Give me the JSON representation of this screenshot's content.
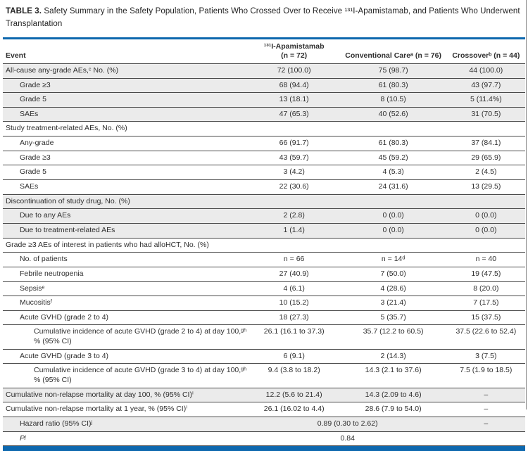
{
  "title": {
    "bold": "TABLE 3.",
    "text": " Safety Summary in the Safety Population, Patients Who Crossed Over to Receive ¹³¹I-Apamistamab, and Patients Who Underwent Transplantation"
  },
  "colors": {
    "accent_blue": "#0e68ae",
    "row_shade_gray": "#ebebeb",
    "rule_dark": "#4a4a4a",
    "text": "#2e2e2e"
  },
  "table": {
    "header": {
      "event": "Event",
      "col2_line1": "¹³¹I-Apamistamab",
      "col2_line2": "(n = 72)",
      "col3": "Conventional Careᵃ (n = 76)",
      "col4": "Crossoverᵇ (n = 44)"
    },
    "rows": [
      {
        "label": "All-cause any-grade AEs,ᶜ No. (%)",
        "indent": 0,
        "shade": true,
        "values": [
          "72 (100.0)",
          "75 (98.7)",
          "44 (100.0)"
        ]
      },
      {
        "label": "Grade ≥3",
        "indent": 1,
        "shade": true,
        "values": [
          "68 (94.4)",
          "61 (80.3)",
          "43 (97.7)"
        ]
      },
      {
        "label": "Grade 5",
        "indent": 1,
        "shade": true,
        "values": [
          "13 (18.1)",
          "8 (10.5)",
          "5 (11.4%)"
        ]
      },
      {
        "label": "SAEs",
        "indent": 1,
        "shade": true,
        "values": [
          "47 (65.3)",
          "40 (52.6)",
          "31 (70.5)"
        ]
      },
      {
        "label": "Study treatment-related AEs, No. (%)",
        "indent": 0,
        "shade": false,
        "values": [
          "",
          "",
          ""
        ]
      },
      {
        "label": "Any-grade",
        "indent": 1,
        "shade": false,
        "values": [
          "66 (91.7)",
          "61 (80.3)",
          "37 (84.1)"
        ]
      },
      {
        "label": "Grade ≥3",
        "indent": 1,
        "shade": false,
        "values": [
          "43 (59.7)",
          "45 (59.2)",
          "29 (65.9)"
        ]
      },
      {
        "label": "Grade 5",
        "indent": 1,
        "shade": false,
        "values": [
          "3 (4.2)",
          "4 (5.3)",
          "2 (4.5)"
        ]
      },
      {
        "label": "SAEs",
        "indent": 1,
        "shade": false,
        "values": [
          "22 (30.6)",
          "24 (31.6)",
          "13 (29.5)"
        ]
      },
      {
        "label": "Discontinuation of study drug, No. (%)",
        "indent": 0,
        "shade": true,
        "values": [
          "",
          "",
          ""
        ]
      },
      {
        "label": "Due to any AEs",
        "indent": 1,
        "shade": true,
        "values": [
          "2 (2.8)",
          "0 (0.0)",
          "0 (0.0)"
        ]
      },
      {
        "label": "Due to treatment-related AEs",
        "indent": 1,
        "shade": true,
        "values": [
          "1 (1.4)",
          "0 (0.0)",
          "0 (0.0)"
        ]
      },
      {
        "label": "Grade ≥3 AEs of interest in patients who had alloHCT, No. (%)",
        "indent": 0,
        "shade": false,
        "values": [
          "",
          "",
          ""
        ]
      },
      {
        "label": "No. of patients",
        "indent": 1,
        "shade": false,
        "values": [
          "n = 66",
          "n = 14ᵈ",
          "n = 40"
        ]
      },
      {
        "label": "Febrile neutropenia",
        "indent": 1,
        "shade": false,
        "values": [
          "27 (40.9)",
          "7 (50.0)",
          "19 (47.5)"
        ]
      },
      {
        "label": "Sepsisᵉ",
        "indent": 1,
        "shade": false,
        "values": [
          "4 (6.1)",
          "4 (28.6)",
          "8 (20.0)"
        ]
      },
      {
        "label": "Mucositisᶠ",
        "indent": 1,
        "shade": false,
        "values": [
          "10 (15.2)",
          "3 (21.4)",
          "7 (17.5)"
        ]
      },
      {
        "label": "Acute GVHD (grade 2 to 4)",
        "indent": 1,
        "shade": false,
        "values": [
          "18 (27.3)",
          "5 (35.7)",
          "15 (37.5)"
        ]
      },
      {
        "label": "Cumulative incidence of acute GVHD (grade 2 to 4) at day 100,ᵍʰ % (95% CI)",
        "indent": 2,
        "shade": false,
        "values": [
          "26.1 (16.1 to 37.3)",
          "35.7 (12.2 to 60.5)",
          "37.5 (22.6 to 52.4)"
        ]
      },
      {
        "label": "Acute GVHD (grade 3 to 4)",
        "indent": 1,
        "shade": false,
        "values": [
          "6 (9.1)",
          "2 (14.3)",
          "3 (7.5)"
        ]
      },
      {
        "label": "Cumulative incidence of acute GVHD (grade 3 to 4) at day 100,ᵍʰ % (95% CI)",
        "indent": 2,
        "shade": false,
        "values": [
          "9.4 (3.8 to 18.2)",
          "14.3 (2.1 to 37.6)",
          "7.5 (1.9 to 18.5)"
        ]
      },
      {
        "label": "Cumulative non-relapse mortality at day 100, % (95% CI)ⁱ",
        "indent": 0,
        "shade": true,
        "values": [
          "12.2 (5.6 to 21.4)",
          "14.3 (2.09 to 4.6)",
          "–"
        ]
      },
      {
        "label": "Cumulative non-relapse mortality at 1 year, % (95% CI)ⁱ",
        "indent": 0,
        "shade": false,
        "values": [
          "26.1 (16.02 to 4.4)",
          "28.6 (7.9 to 54.0)",
          "–"
        ]
      },
      {
        "label": "Hazard ratio (95% CI)ʲ",
        "indent": 1,
        "shade": true,
        "span": "0.89 (0.30 to 2.62)",
        "col4": "–"
      },
      {
        "label": "Pʲ",
        "indent": 1,
        "shade": false,
        "italic": true,
        "span": "0.84",
        "col4": ""
      }
    ]
  }
}
